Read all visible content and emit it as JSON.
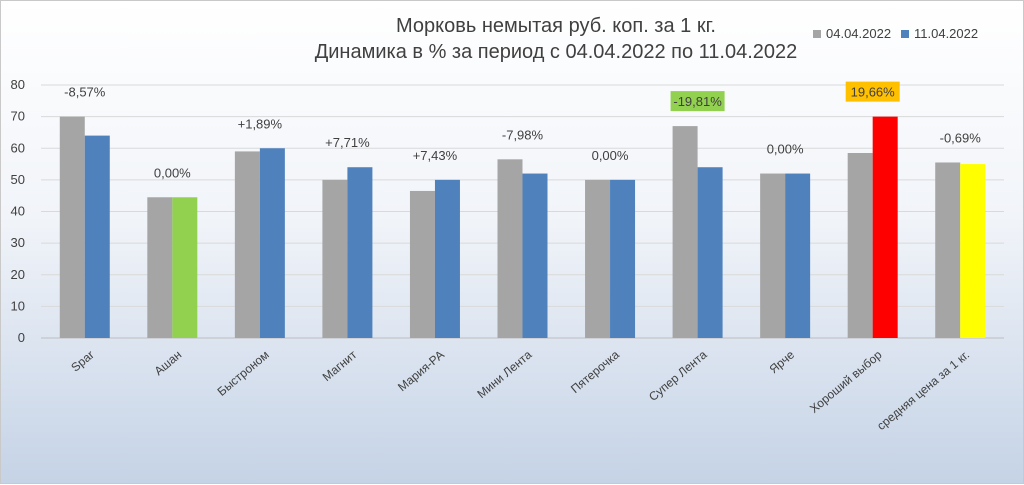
{
  "chart_data": {
    "type": "bar",
    "title": "Морковь немытая руб. коп. за 1 кг.",
    "subtitle": "Динамика в % за период с 04.04.2022 по 11.04.2022",
    "xlabel": "",
    "ylabel": "",
    "ylim": [
      0,
      80
    ],
    "yticks": [
      0,
      10,
      20,
      30,
      40,
      50,
      60,
      70,
      80
    ],
    "grid": true,
    "legend_position": "top-right",
    "categories": [
      "Spar",
      "Ашан",
      "Быстроном",
      "Магнит",
      "Мария-РА",
      "Мини Лента",
      "Пятерочка",
      "Супер Лента",
      "Ярче",
      "Хороший выбор",
      "средняя цена за 1 кг."
    ],
    "series": [
      {
        "name": "04.04.2022",
        "color": "#a5a5a5",
        "values": [
          70,
          44.5,
          59,
          50,
          46.5,
          56.5,
          50,
          67,
          52,
          58.5,
          55.5
        ]
      },
      {
        "name": "11.04.2022",
        "color": "#4f81bd",
        "values": [
          64,
          44.5,
          60,
          54,
          50,
          52,
          50,
          54,
          52,
          70,
          55
        ]
      }
    ],
    "bar_color_overrides": [
      {
        "series": 1,
        "index": 1,
        "color": "#92d050"
      },
      {
        "series": 1,
        "index": 9,
        "color": "#ff0000"
      },
      {
        "series": 1,
        "index": 10,
        "color": "#ffff00"
      }
    ],
    "annotations": [
      {
        "text": "-8,57%",
        "index": 0
      },
      {
        "text": "0,00%",
        "index": 1
      },
      {
        "text": "+1,89%",
        "index": 2
      },
      {
        "text": "+7,71%",
        "index": 3
      },
      {
        "text": "+7,43%",
        "index": 4
      },
      {
        "text": "-7,98%",
        "index": 5
      },
      {
        "text": "0,00%",
        "index": 6
      },
      {
        "text": "-19,81%",
        "index": 7,
        "highlight": "#92d050"
      },
      {
        "text": "0,00%",
        "index": 8
      },
      {
        "text": "19,66%",
        "index": 9,
        "highlight": "#ffc000"
      },
      {
        "text": "-0,69%",
        "index": 10
      }
    ]
  }
}
